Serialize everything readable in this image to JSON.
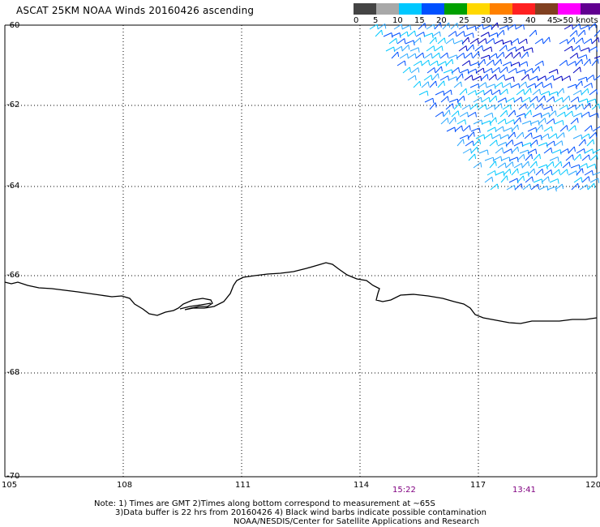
{
  "title": "ASCAT 25KM NOAA Winds 20160426 ascending",
  "legend": {
    "labels": [
      "0",
      "5",
      "10",
      "15",
      "20",
      "25",
      "30",
      "35",
      "40",
      "45",
      ">50 knots"
    ],
    "colors": [
      "#444444",
      "#a8a8a8",
      "#00c8ff",
      "#0050ff",
      "#00a000",
      "#ffd800",
      "#ff8000",
      "#ff2020",
      "#804020",
      "#ff00ff",
      "#600090"
    ]
  },
  "axes": {
    "y_labels": [
      "-60",
      "-62",
      "-64",
      "-66",
      "-68",
      "-70"
    ],
    "x_labels": [
      "105",
      "108",
      "111",
      "114",
      "117",
      "120"
    ],
    "lat_range": [
      -70,
      -60
    ],
    "lon_range": [
      105,
      120
    ],
    "grid": "dotted"
  },
  "times": [
    "15:22",
    "13:41"
  ],
  "notes": [
    "Note: 1) Times are GMT 2)Times along bottom correspond to measurement at ~65S",
    "3)Data buffer is 22 hrs from 20160426 4) Black wind barbs indicate possible contamination",
    "NOAA/NESDIS/Center for Satellite Applications and Research"
  ],
  "colors": {
    "coast": "#000000",
    "grid": "#000000",
    "time_label": "#800080",
    "barb_palette": [
      "#00c8ff",
      "#2aa8ff",
      "#0050ff",
      "#0000c0",
      "#00a000"
    ]
  },
  "wind_barb_region": "upper-right"
}
